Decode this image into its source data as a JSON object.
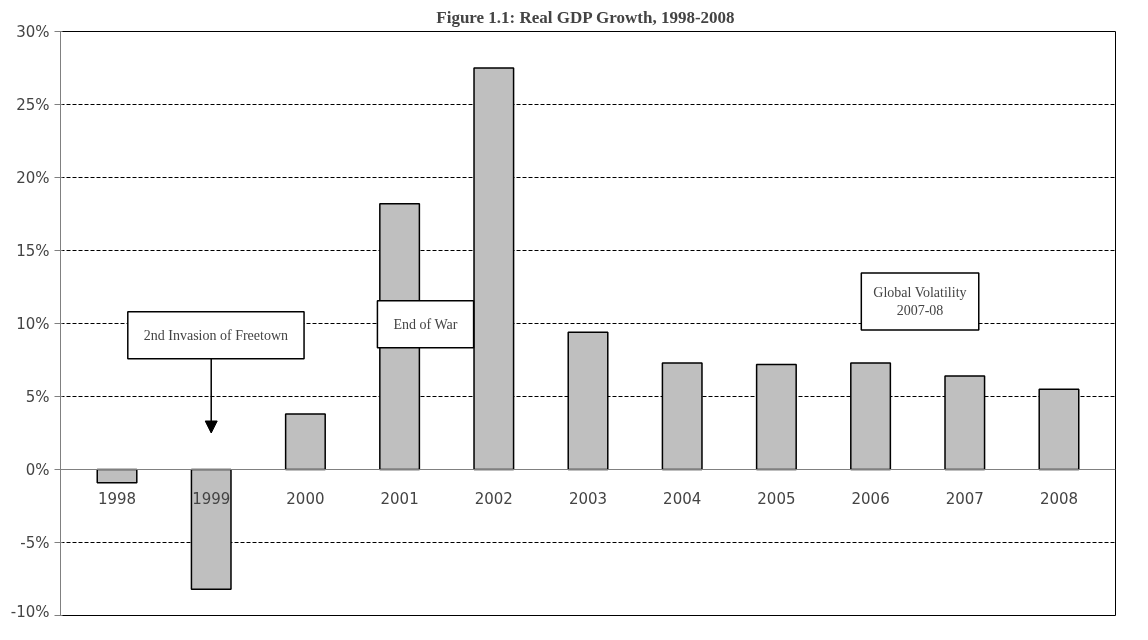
{
  "chart_data": {
    "type": "bar",
    "title": "Figure 1.1:  Real GDP Growth, 1998-2008",
    "categories": [
      "1998",
      "1999",
      "2000",
      "2001",
      "2002",
      "2003",
      "2004",
      "2005",
      "2006",
      "2007",
      "2008"
    ],
    "values": [
      -0.9,
      -8.2,
      3.8,
      18.2,
      27.5,
      9.4,
      7.3,
      7.2,
      7.3,
      6.4,
      5.5
    ],
    "color": "#bfbfbf",
    "ylim": [
      -10,
      30
    ],
    "yticks": [
      {
        "value": -10,
        "label": "-10%"
      },
      {
        "value": -5,
        "label": "-5%"
      },
      {
        "value": 0,
        "label": "0%"
      },
      {
        "value": 5,
        "label": "5%"
      },
      {
        "value": 10,
        "label": "10%"
      },
      {
        "value": 15,
        "label": "15%"
      },
      {
        "value": 20,
        "label": "20%"
      },
      {
        "value": 25,
        "label": "25%"
      },
      {
        "value": 30,
        "label": "30%"
      }
    ],
    "grid": "y",
    "annotations": [
      "2nd Invasion of Freetown",
      "End of War",
      "Global Volatility\n2007-08"
    ]
  }
}
